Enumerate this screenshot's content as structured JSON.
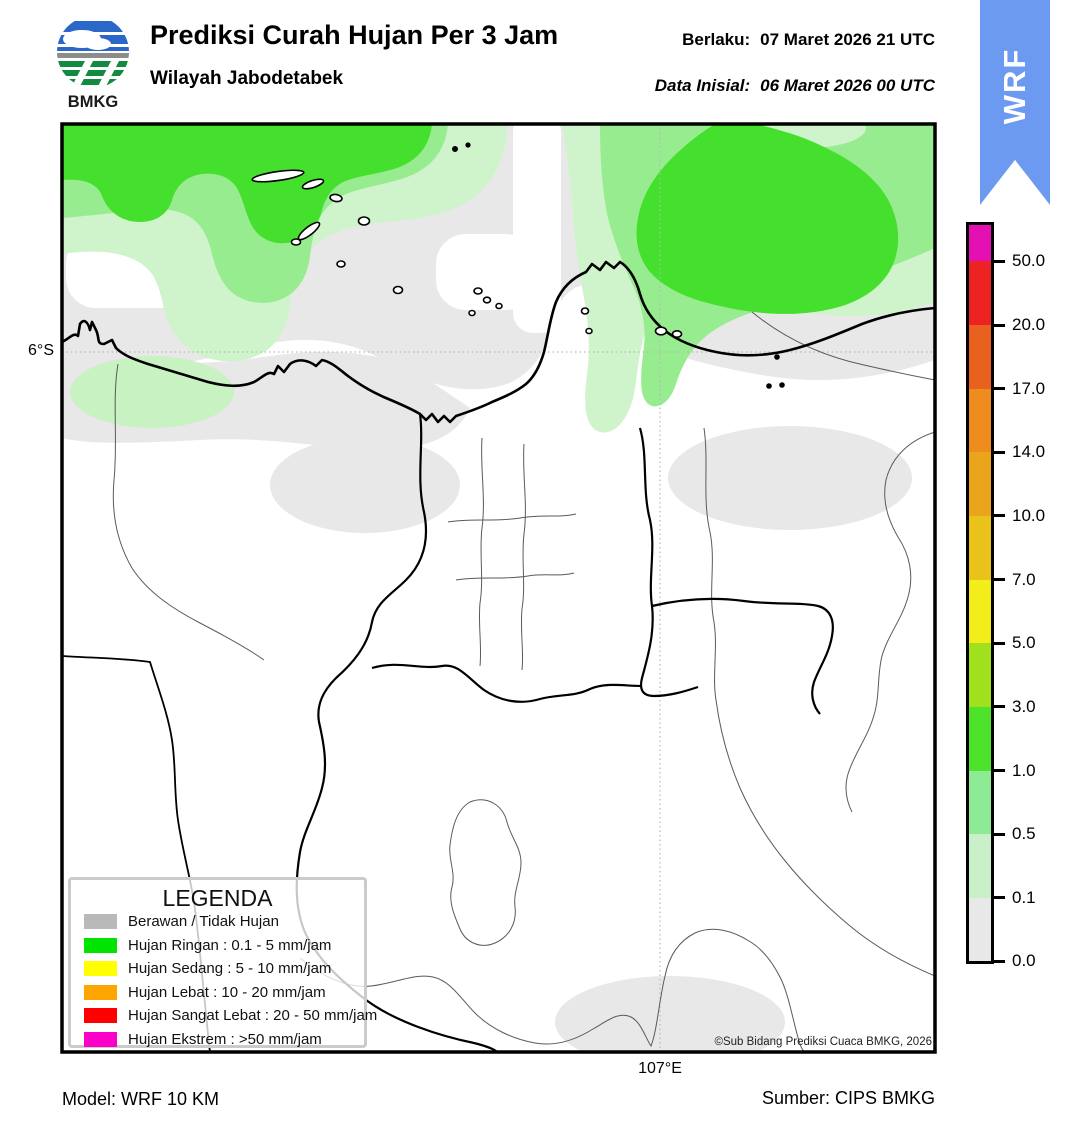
{
  "header": {
    "title": "Prediksi Curah Hujan Per 3 Jam",
    "subtitle": "Wilayah Jabodetabek",
    "valid_label": "Berlaku:",
    "valid_value": "07 Maret 2026 21 UTC",
    "init_label": "Data Inisial:",
    "init_value": "06 Maret 2026 00 UTC",
    "logo_text": "BMKG",
    "ribbon_text": "WRF"
  },
  "map": {
    "lat_label": "6°S",
    "lon_label": "107°E",
    "copyright": "©Sub Bidang Prediksi Cuaca BMKG, 2026",
    "fill_colors": {
      "cloud_gray": "#E8E8E8",
      "rain_pale": "#CFF3CB",
      "rain_light": "#98EC90",
      "rain_bright": "#45DF2D"
    }
  },
  "legend": {
    "title": "LEGENDA",
    "items": [
      {
        "label": "Berawan / Tidak Hujan",
        "color": "#B9B9B9"
      },
      {
        "label": "Hujan Ringan : 0.1 - 5 mm/jam",
        "color": "#00E400"
      },
      {
        "label": "Hujan Sedang : 5 - 10 mm/jam",
        "color": "#FFFF00"
      },
      {
        "label": "Hujan Lebat : 10 - 20 mm/jam",
        "color": "#FFA500"
      },
      {
        "label": "Hujan Sangat Lebat : 20 - 50 mm/jam",
        "color": "#FF0000"
      },
      {
        "label": "Hujan Ekstrem : >50 mm/jam",
        "color": "#FA00C8"
      }
    ]
  },
  "colorbar": {
    "tick_labels": [
      "50.0",
      "20.0",
      "17.0",
      "14.0",
      "10.0",
      "7.0",
      "5.0",
      "3.0",
      "1.0",
      "0.5",
      "0.1",
      "0.0"
    ],
    "segment_colors_top_to_bottom": [
      "#E410B4",
      "#ED2223",
      "#E8611E",
      "#EE8D1E",
      "#EAA51C",
      "#E9C319",
      "#F2ED1B",
      "#A0E01C",
      "#4EE32B",
      "#8DEB96",
      "#C9F0C9",
      "#E8E8E8"
    ]
  },
  "footer": {
    "model": "Model: WRF 10 KM",
    "source": "Sumber: CIPS BMKG"
  }
}
